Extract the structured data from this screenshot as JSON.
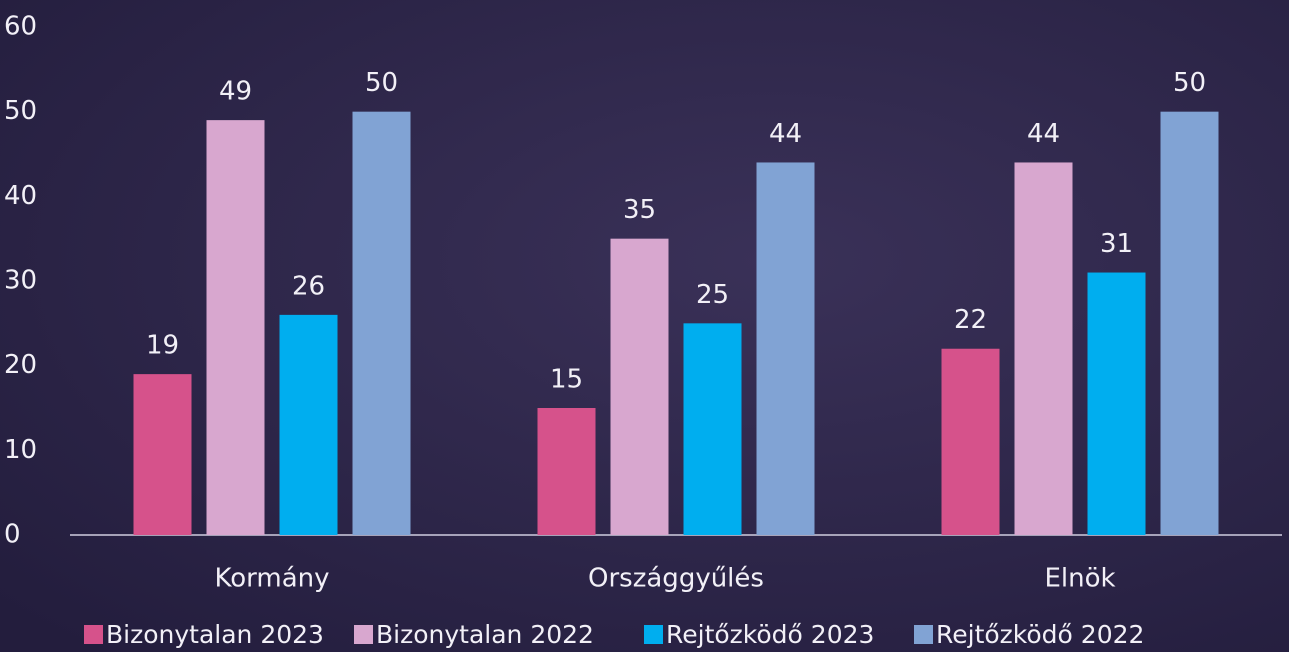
{
  "chart_data": {
    "type": "bar",
    "categories": [
      "Kormány",
      "Országgyűlés",
      "Elnök"
    ],
    "series": [
      {
        "name": "Bizonytalan 2023",
        "color": "#d6528b",
        "values": [
          19,
          15,
          22
        ]
      },
      {
        "name": "Bizonytalan 2022",
        "color": "#d8a7cf",
        "values": [
          49,
          35,
          44
        ]
      },
      {
        "name": "Rejtőzködő 2023",
        "color": "#00aeef",
        "values": [
          26,
          25,
          31
        ]
      },
      {
        "name": "Rejtőzködő 2022",
        "color": "#81a3d4",
        "values": [
          50,
          44,
          50
        ]
      }
    ],
    "ylim": [
      0,
      60
    ],
    "yticks": [
      0,
      10,
      20,
      30,
      40,
      50,
      60
    ],
    "grid": false
  }
}
